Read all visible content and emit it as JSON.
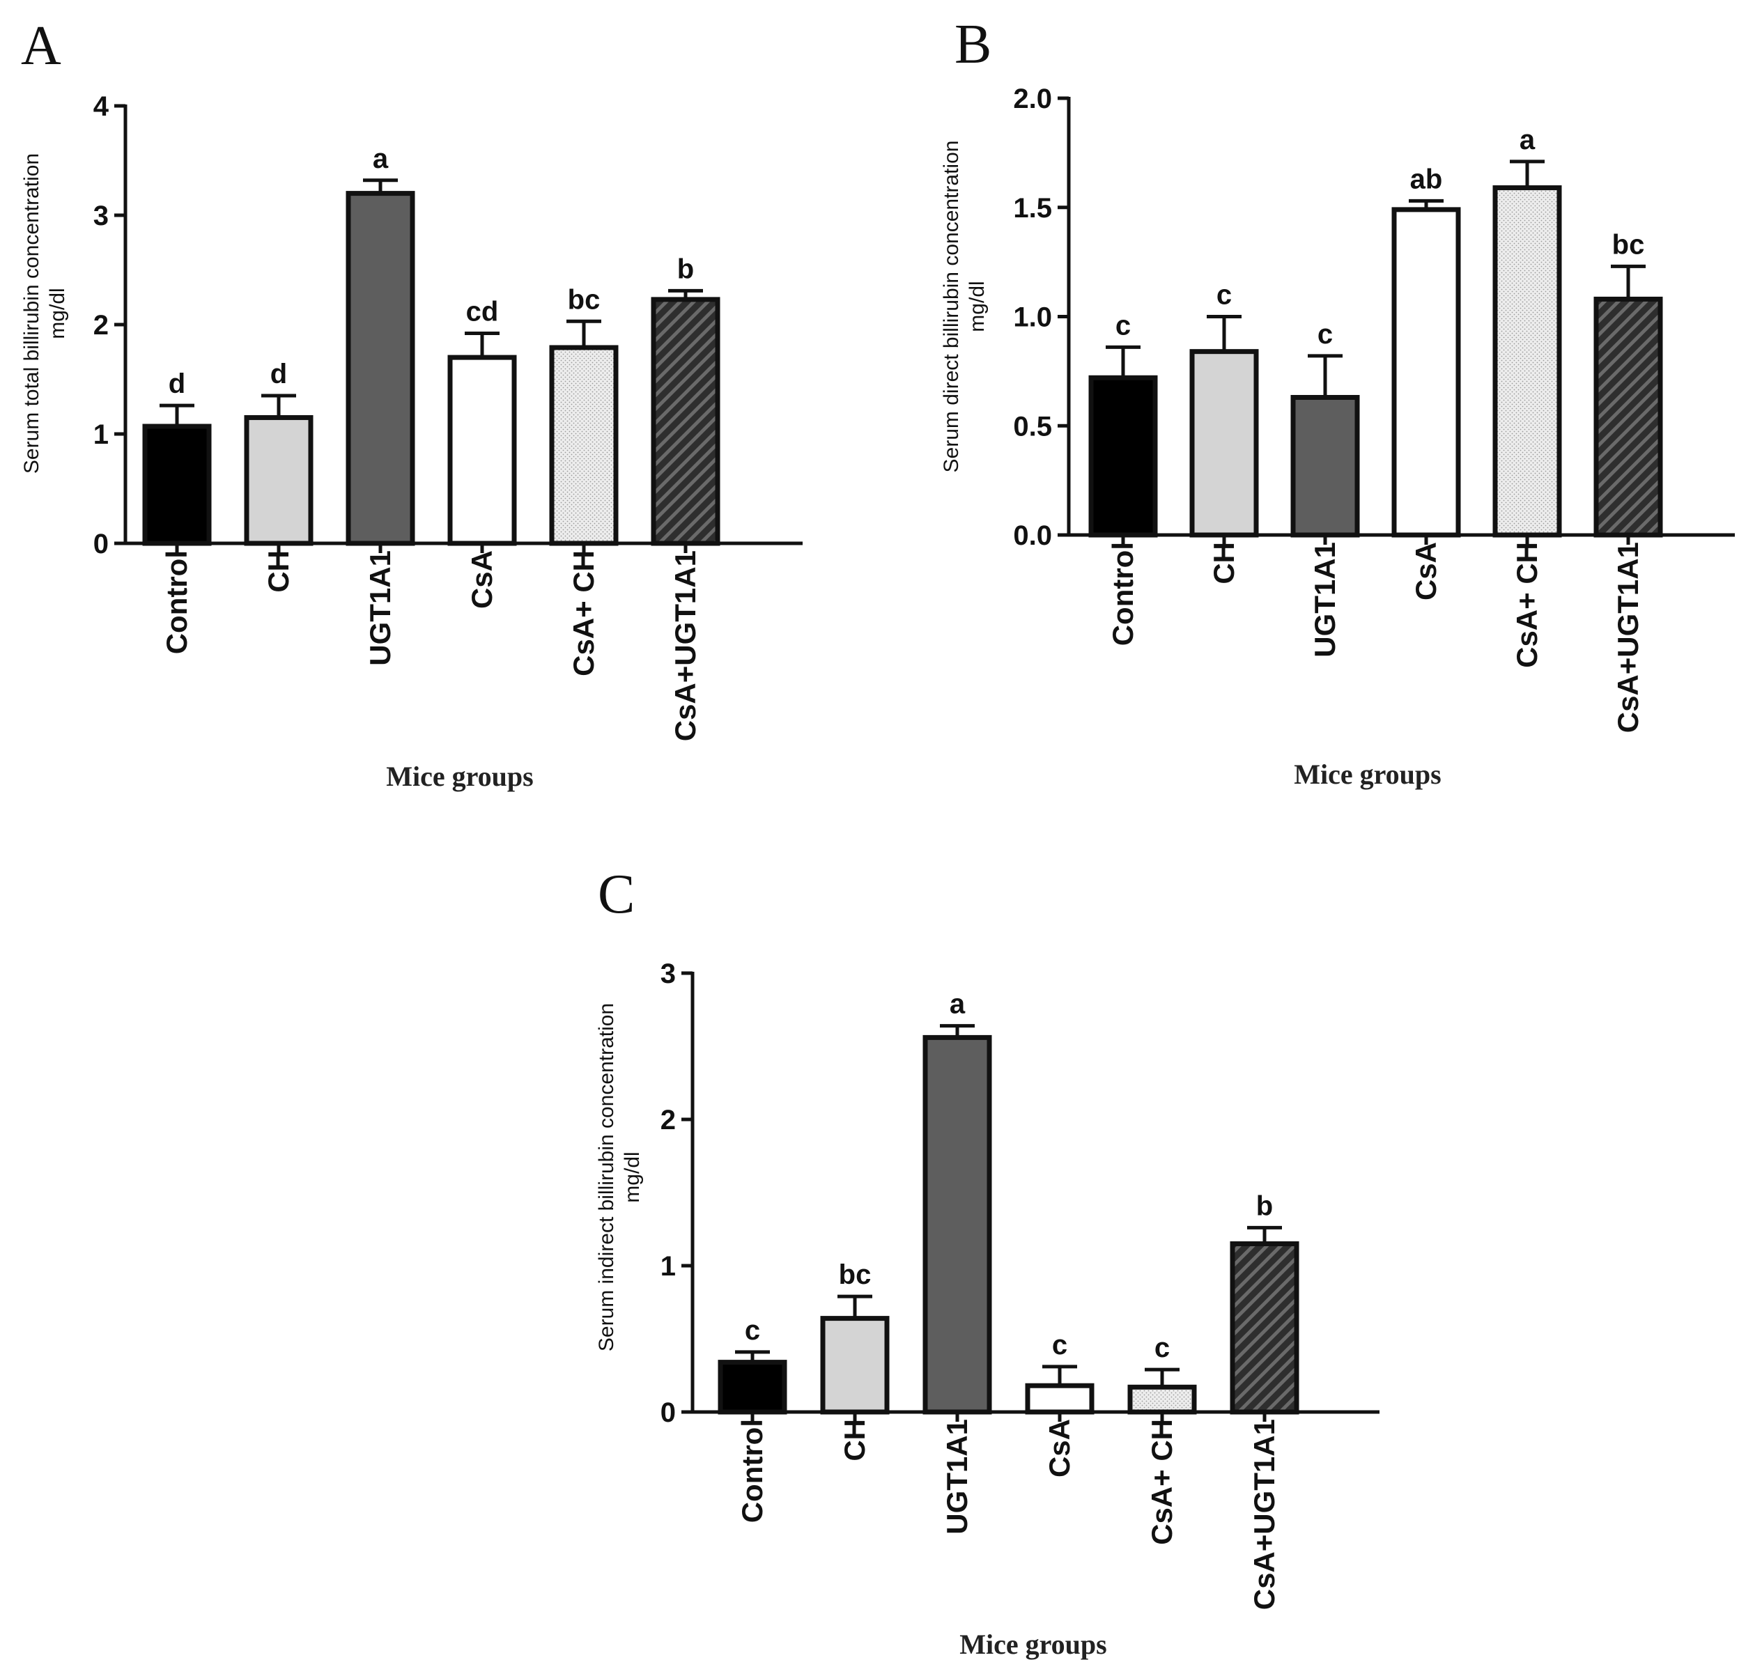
{
  "chart_data": [
    {
      "panel": "A",
      "type": "bar",
      "ylabel_line1": "Serum total billirubin concentration",
      "ylabel_line2": "mg/dl",
      "xlabel": "Mice groups",
      "ylim": [
        0,
        4
      ],
      "yticks": [
        "0",
        "1",
        "2",
        "3",
        "4"
      ],
      "categories": [
        "Control",
        "CH",
        "UGT1A1",
        "CsA",
        "CsA+ CH",
        "CsA+UGT1A1"
      ],
      "values": [
        1.07,
        1.15,
        3.2,
        1.7,
        1.79,
        2.23
      ],
      "errors": [
        0.19,
        0.2,
        0.12,
        0.22,
        0.24,
        0.08
      ],
      "significance": [
        "d",
        "d",
        "a",
        "cd",
        "bc",
        "b"
      ]
    },
    {
      "panel": "B",
      "type": "bar",
      "ylabel_line1": "Serum direct billirubin concentration",
      "ylabel_line2": "mg/dl",
      "xlabel": "Mice groups",
      "ylim": [
        0,
        2
      ],
      "yticks": [
        "0.0",
        "0.5",
        "1.0",
        "1.5",
        "2.0"
      ],
      "categories": [
        "Control",
        "CH",
        "UGT1A1",
        "CsA",
        "CsA+ CH",
        "CsA+UGT1A1"
      ],
      "values": [
        0.72,
        0.84,
        0.63,
        1.49,
        1.59,
        1.08
      ],
      "errors": [
        0.14,
        0.16,
        0.19,
        0.04,
        0.12,
        0.15
      ],
      "significance": [
        "c",
        "c",
        "c",
        "ab",
        "a",
        "bc"
      ]
    },
    {
      "panel": "C",
      "type": "bar",
      "ylabel_line1": "Serum indirect billirubin concentration",
      "ylabel_line2": "mg/dl",
      "xlabel": "Mice groups",
      "ylim": [
        0,
        3
      ],
      "yticks": [
        "0",
        "1",
        "2",
        "3"
      ],
      "categories": [
        "Control",
        "CH",
        "UGT1A1",
        "CsA",
        "CsA+ CH",
        "CsA+UGT1A1"
      ],
      "values": [
        0.34,
        0.64,
        2.56,
        0.18,
        0.17,
        1.15
      ],
      "errors": [
        0.07,
        0.15,
        0.08,
        0.13,
        0.12,
        0.11
      ],
      "significance": [
        "c",
        "bc",
        "a",
        "c",
        "c",
        "b"
      ]
    }
  ],
  "bar_styles": [
    {
      "group": "Control",
      "fill": "#000000"
    },
    {
      "group": "CH",
      "fill": "#d4d4d4"
    },
    {
      "group": "UGT1A1",
      "fill": "#5e5e5e"
    },
    {
      "group": "CsA",
      "fill": "#ffffff"
    },
    {
      "group": "CsA+ CH",
      "fill": "#ececec",
      "pattern": "dots"
    },
    {
      "group": "CsA+UGT1A1",
      "fill": "#3a3a3a",
      "pattern": "hatch"
    }
  ]
}
